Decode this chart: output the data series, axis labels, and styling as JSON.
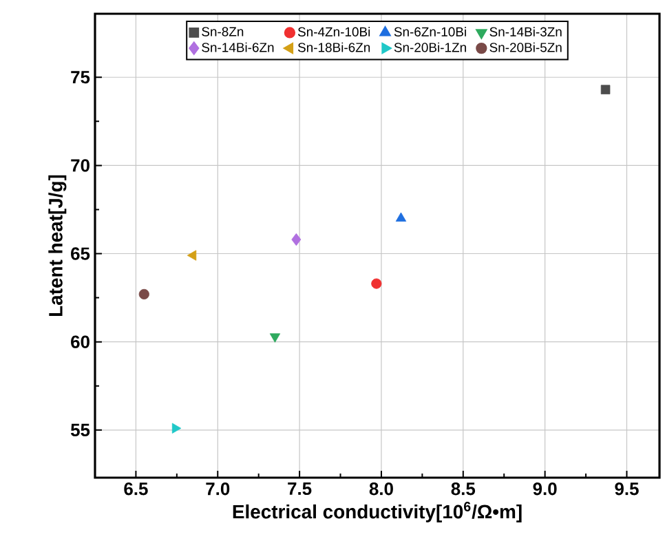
{
  "chart_data": {
    "type": "scatter",
    "xlabel": "Electrical conductivity[10$^{6}$/Ω•m]",
    "ylabel": "Latent heat[J/g]",
    "xlim": [
      6.25,
      9.7
    ],
    "ylim": [
      52.3,
      78.6
    ],
    "xticks": [
      6.5,
      {
        "value": 7,
        "label": "7.0"
      },
      7.5,
      {
        "value": 8,
        "label": "8.0"
      },
      8.5,
      {
        "value": 9,
        "label": "9.0"
      },
      9.5
    ],
    "yticks": [
      55,
      60,
      65,
      70,
      75
    ],
    "grid": true,
    "legend": "top",
    "series": [
      {
        "name": "Sn-8Zn",
        "color": "#4d4d4d",
        "marker": "square",
        "x": [
          9.37
        ],
        "values": [
          74.3
        ]
      },
      {
        "name": "Sn-4Zn-10Bi",
        "color": "#f03030",
        "marker": "circle",
        "x": [
          7.97
        ],
        "values": [
          63.3
        ]
      },
      {
        "name": "Sn-6Zn-10Bi",
        "color": "#1f6fe0",
        "marker": "triangle",
        "x": [
          8.12
        ],
        "values": [
          67.0
        ]
      },
      {
        "name": "Sn-14Bi-3Zn",
        "color": "#2eaa5e",
        "marker": "triangle-down",
        "x": [
          7.35
        ],
        "values": [
          60.3
        ]
      },
      {
        "name": "Sn-14Bi-6Zn",
        "color": "#b070e0",
        "marker": "diamond",
        "x": [
          7.48
        ],
        "values": [
          65.8
        ]
      },
      {
        "name": "Sn-18Bi-6Zn",
        "color": "#d4a017",
        "marker": "triangle-left",
        "x": [
          6.85
        ],
        "values": [
          64.9
        ]
      },
      {
        "name": "Sn-20Bi-1Zn",
        "color": "#20c8c8",
        "marker": "triangle-right",
        "x": [
          6.74
        ],
        "values": [
          55.1
        ]
      },
      {
        "name": "Sn-20Bi-5Zn",
        "color": "#7a4a48",
        "marker": "circle",
        "x": [
          6.55
        ],
        "values": [
          62.7
        ]
      }
    ]
  }
}
